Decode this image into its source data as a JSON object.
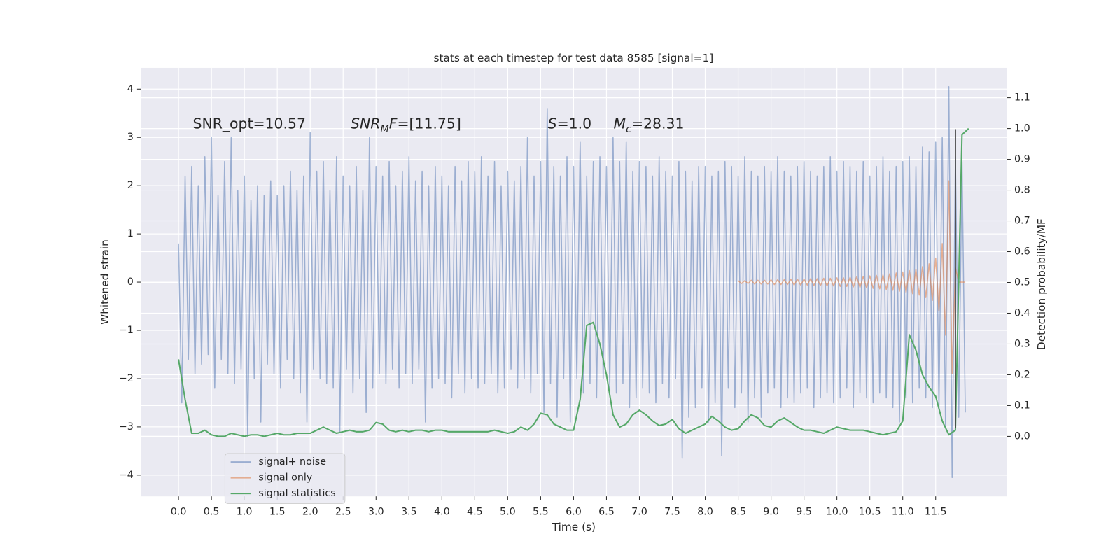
{
  "chart_data": {
    "type": "line",
    "title": "stats at each timestep for test data 8585 [signal=1]",
    "xlabel": "Time (s)",
    "ylabel": "Whitened strain",
    "y2label": "Detection probability/MF",
    "background": "#eaeaf2",
    "grid": true,
    "legend": "lower left",
    "xlim": [
      -0.575,
      12.585
    ],
    "ylim": [
      -4.44,
      4.44
    ],
    "y2lim": [
      -0.195,
      1.197
    ],
    "xticks": [
      {
        "value": 0,
        "label": "0.0"
      },
      0.5,
      {
        "value": 1,
        "label": "1.0"
      },
      1.5,
      {
        "value": 2,
        "label": "2.0"
      },
      2.5,
      {
        "value": 3,
        "label": "3.0"
      },
      3.5,
      {
        "value": 4,
        "label": "4.0"
      },
      4.5,
      {
        "value": 5,
        "label": "5.0"
      },
      5.5,
      {
        "value": 6,
        "label": "6.0"
      },
      6.5,
      {
        "value": 7,
        "label": "7.0"
      },
      7.5,
      {
        "value": 8,
        "label": "8.0"
      },
      8.5,
      {
        "value": 9,
        "label": "9.0"
      },
      9.5,
      {
        "value": 10,
        "label": "10.0"
      },
      10.5,
      {
        "value": 11,
        "label": "11.0"
      },
      11.5
    ],
    "yticks": [
      {
        "value": -4,
        "label": "−4"
      },
      {
        "value": -3,
        "label": "−3"
      },
      {
        "value": -2,
        "label": "−2"
      },
      {
        "value": -1,
        "label": "−1"
      },
      0,
      1,
      2,
      3,
      4
    ],
    "y2ticks": [
      {
        "value": 0,
        "label": "0.0"
      },
      0.1,
      0.2,
      0.3,
      0.4,
      0.5,
      0.6,
      0.7,
      0.8,
      0.9,
      {
        "value": 1,
        "label": "1.0"
      },
      1.1
    ],
    "annotations": [
      [
        {
          "text": "SNR_opt=10.57"
        }
      ],
      [
        {
          "text": "SNR",
          "style": "italic"
        },
        {
          "text": "M",
          "style": "sub"
        },
        {
          "text": "F",
          "style": "italic"
        },
        {
          "text": "=[11.75]"
        }
      ],
      [
        {
          "text": "S",
          "style": "italic"
        },
        {
          "text": "=1.0"
        }
      ],
      [
        {
          "text": "M",
          "style": "italic"
        },
        {
          "text": "c",
          "style": "sub"
        },
        {
          "text": "=28.31"
        }
      ]
    ],
    "vline": {
      "x": 11.8,
      "y": [
        -3.02,
        3.17
      ],
      "color": "#444444"
    },
    "series": [
      {
        "name": "signal+ noise",
        "color": "#4c72b0",
        "alpha": 0.5,
        "x": [
          0,
          0.05,
          0.1,
          0.15,
          0.2,
          0.25,
          0.3,
          0.35,
          0.4,
          0.45,
          0.5,
          0.55,
          0.6,
          0.65,
          0.7,
          0.75,
          0.8,
          0.85,
          0.9,
          0.95,
          1,
          1.05,
          1.1,
          1.15,
          1.2,
          1.25,
          1.3,
          1.35,
          1.4,
          1.45,
          1.5,
          1.55,
          1.6,
          1.65,
          1.7,
          1.75,
          1.8,
          1.85,
          1.9,
          1.95,
          2,
          2.05,
          2.1,
          2.15,
          2.2,
          2.25,
          2.3,
          2.35,
          2.4,
          2.45,
          2.5,
          2.55,
          2.6,
          2.65,
          2.7,
          2.75,
          2.8,
          2.85,
          2.9,
          2.95,
          3,
          3.05,
          3.1,
          3.15,
          3.2,
          3.25,
          3.3,
          3.35,
          3.4,
          3.45,
          3.5,
          3.55,
          3.6,
          3.65,
          3.7,
          3.75,
          3.8,
          3.85,
          3.9,
          3.95,
          4,
          4.05,
          4.1,
          4.15,
          4.2,
          4.25,
          4.3,
          4.35,
          4.4,
          4.45,
          4.5,
          4.55,
          4.6,
          4.65,
          4.7,
          4.75,
          4.8,
          4.85,
          4.9,
          4.95,
          5,
          5.05,
          5.1,
          5.15,
          5.2,
          5.25,
          5.3,
          5.35,
          5.4,
          5.45,
          5.5,
          5.55,
          5.6,
          5.65,
          5.7,
          5.75,
          5.8,
          5.85,
          5.9,
          5.95,
          6,
          6.05,
          6.1,
          6.15,
          6.2,
          6.25,
          6.3,
          6.35,
          6.4,
          6.45,
          6.5,
          6.55,
          6.6,
          6.65,
          6.7,
          6.75,
          6.8,
          6.85,
          6.9,
          6.95,
          7,
          7.05,
          7.1,
          7.15,
          7.2,
          7.25,
          7.3,
          7.35,
          7.4,
          7.45,
          7.5,
          7.55,
          7.6,
          7.65,
          7.7,
          7.75,
          7.8,
          7.85,
          7.9,
          7.95,
          8,
          8.05,
          8.1,
          8.15,
          8.2,
          8.25,
          8.3,
          8.35,
          8.4,
          8.45,
          8.5,
          8.55,
          8.6,
          8.65,
          8.7,
          8.75,
          8.8,
          8.85,
          8.9,
          8.95,
          9,
          9.05,
          9.1,
          9.15,
          9.2,
          9.25,
          9.3,
          9.35,
          9.4,
          9.45,
          9.5,
          9.55,
          9.6,
          9.65,
          9.7,
          9.75,
          9.8,
          9.85,
          9.9,
          9.95,
          10,
          10.05,
          10.1,
          10.15,
          10.2,
          10.25,
          10.3,
          10.35,
          10.4,
          10.45,
          10.5,
          10.55,
          10.6,
          10.65,
          10.7,
          10.75,
          10.8,
          10.85,
          10.9,
          10.95,
          11,
          11.05,
          11.1,
          11.15,
          11.2,
          11.25,
          11.3,
          11.35,
          11.4,
          11.45,
          11.5,
          11.55,
          11.6,
          11.65,
          11.7,
          11.75,
          11.8,
          11.85,
          11.9,
          11.95
        ],
        "values": [
          0.8,
          -2.5,
          2.2,
          -1.6,
          2.4,
          -1.9,
          2.0,
          -1.7,
          2.6,
          -1.5,
          3.0,
          -2.2,
          1.8,
          -1.6,
          2.5,
          -1.9,
          3.0,
          -2.1,
          1.9,
          -1.8,
          2.2,
          -3.2,
          1.7,
          -2.0,
          2.0,
          -2.9,
          1.8,
          -1.7,
          2.1,
          -1.9,
          1.8,
          -2.2,
          2.0,
          -1.6,
          2.3,
          -2.0,
          1.9,
          -2.3,
          2.2,
          -2.9,
          3.1,
          -1.8,
          2.3,
          -2.0,
          2.5,
          -2.1,
          1.9,
          -2.2,
          2.6,
          -3.1,
          2.2,
          -1.8,
          2.0,
          -2.3,
          2.4,
          -2.0,
          1.9,
          -2.7,
          3.0,
          -2.2,
          2.4,
          -1.9,
          2.2,
          -2.1,
          2.5,
          -1.8,
          2.0,
          -2.2,
          2.3,
          -1.9,
          2.6,
          -2.1,
          2.1,
          -1.8,
          2.3,
          -2.9,
          2.0,
          -2.2,
          2.4,
          -2.0,
          2.2,
          -2.1,
          2.0,
          -2.4,
          2.4,
          -1.9,
          2.1,
          -2.3,
          2.5,
          -2.0,
          2.3,
          -2.2,
          2.6,
          -2.1,
          2.2,
          -1.9,
          2.5,
          -2.3,
          2.0,
          -2.2,
          2.3,
          -1.8,
          2.1,
          -2.2,
          2.4,
          -2.0,
          3.0,
          -2.3,
          2.2,
          -1.9,
          2.5,
          -2.7,
          3.6,
          -2.1,
          2.4,
          -2.8,
          2.2,
          -2.0,
          2.6,
          -2.9,
          2.4,
          -2.0,
          2.9,
          -2.3,
          2.2,
          -2.1,
          2.5,
          -2.4,
          2.6,
          -2.0,
          2.4,
          -2.2,
          3.0,
          -2.3,
          2.5,
          -2.1,
          2.9,
          -2.6,
          2.3,
          -2.4,
          2.5,
          -2.2,
          2.4,
          -2.3,
          2.2,
          -2.5,
          2.6,
          -2.1,
          2.3,
          -2.4,
          2.2,
          -2.0,
          2.5,
          -3.65,
          2.3,
          -2.8,
          2.1,
          -2.6,
          2.4,
          -2.2,
          2.4,
          -2.9,
          2.2,
          -2.5,
          2.3,
          -3.6,
          2.5,
          -2.2,
          2.4,
          -2.6,
          2.2,
          -2.3,
          2.6,
          -2.9,
          2.3,
          -2.4,
          2.2,
          -2.8,
          2.4,
          -2.3,
          2.3,
          -2.2,
          2.6,
          -2.6,
          2.3,
          -2.4,
          2.2,
          -2.5,
          2.4,
          -2.3,
          2.5,
          -2.2,
          2.3,
          -2.6,
          2.2,
          -2.4,
          2.4,
          -2.3,
          2.6,
          -2.5,
          2.3,
          -2.4,
          2.5,
          -2.2,
          2.4,
          -2.6,
          2.3,
          -2.3,
          2.5,
          -2.4,
          2.2,
          -2.5,
          2.4,
          -2.3,
          2.6,
          -2.4,
          2.3,
          -2.6,
          2.4,
          -2.9,
          2.5,
          -2.4,
          2.6,
          -2.5,
          2.4,
          -2.2,
          2.8,
          -2.4,
          2.7,
          -2.6,
          2.9,
          -2.6,
          3.0,
          -3.0,
          4.05,
          -4.05,
          2.6,
          -2.8,
          2.5,
          -2.7
        ]
      },
      {
        "name": "signal only",
        "color": "#dd8452",
        "alpha": 0.6,
        "x": [
          8.5,
          8.55,
          8.6,
          8.65,
          8.7,
          8.75,
          8.8,
          8.85,
          8.9,
          8.95,
          9,
          9.05,
          9.1,
          9.15,
          9.2,
          9.25,
          9.3,
          9.35,
          9.4,
          9.45,
          9.5,
          9.55,
          9.6,
          9.65,
          9.7,
          9.75,
          9.8,
          9.85,
          9.9,
          9.95,
          10,
          10.05,
          10.1,
          10.15,
          10.2,
          10.25,
          10.3,
          10.35,
          10.4,
          10.45,
          10.5,
          10.55,
          10.6,
          10.65,
          10.7,
          10.75,
          10.8,
          10.85,
          10.9,
          10.95,
          11,
          11.05,
          11.1,
          11.15,
          11.2,
          11.25,
          11.3,
          11.35,
          11.4,
          11.45,
          11.5,
          11.55,
          11.6,
          11.65,
          11.7,
          11.75,
          11.8,
          11.85,
          11.9,
          11.95
        ],
        "values": [
          0.03,
          -0.03,
          0.03,
          -0.03,
          0.04,
          -0.04,
          0.04,
          -0.04,
          0.04,
          -0.04,
          0.05,
          -0.05,
          0.05,
          -0.05,
          0.05,
          -0.05,
          0.06,
          -0.06,
          0.06,
          -0.06,
          0.06,
          -0.06,
          0.07,
          -0.07,
          0.07,
          -0.07,
          0.08,
          -0.08,
          0.08,
          -0.08,
          0.09,
          -0.09,
          0.09,
          -0.09,
          0.1,
          -0.1,
          0.11,
          -0.11,
          0.12,
          -0.12,
          0.13,
          -0.13,
          0.14,
          -0.14,
          0.15,
          -0.15,
          0.17,
          -0.17,
          0.19,
          -0.19,
          0.21,
          -0.21,
          0.24,
          -0.24,
          0.27,
          -0.27,
          0.32,
          -0.32,
          0.38,
          -0.38,
          0.5,
          -0.6,
          0.8,
          -1.1,
          2.1,
          -1.9,
          0.3,
          0.0,
          0.0,
          0.0
        ]
      },
      {
        "name": "signal statistics",
        "color": "#55a868",
        "alpha": 1,
        "axis": "y2",
        "x": [
          0,
          0.1,
          0.2,
          0.3,
          0.4,
          0.5,
          0.6,
          0.7,
          0.8,
          0.9,
          1,
          1.1,
          1.2,
          1.3,
          1.4,
          1.5,
          1.6,
          1.7,
          1.8,
          1.9,
          2,
          2.1,
          2.2,
          2.3,
          2.4,
          2.5,
          2.6,
          2.7,
          2.8,
          2.9,
          3,
          3.1,
          3.2,
          3.3,
          3.4,
          3.5,
          3.6,
          3.7,
          3.8,
          3.9,
          4,
          4.1,
          4.2,
          4.3,
          4.4,
          4.5,
          4.6,
          4.7,
          4.8,
          4.9,
          5,
          5.1,
          5.2,
          5.3,
          5.4,
          5.5,
          5.6,
          5.7,
          5.8,
          5.9,
          6,
          6.1,
          6.2,
          6.3,
          6.4,
          6.5,
          6.6,
          6.7,
          6.8,
          6.9,
          7,
          7.1,
          7.2,
          7.3,
          7.4,
          7.5,
          7.6,
          7.7,
          7.8,
          7.9,
          8,
          8.1,
          8.2,
          8.3,
          8.4,
          8.5,
          8.6,
          8.7,
          8.8,
          8.9,
          9,
          9.1,
          9.2,
          9.3,
          9.4,
          9.5,
          9.6,
          9.7,
          9.8,
          9.9,
          10,
          10.1,
          10.2,
          10.3,
          10.4,
          10.5,
          10.6,
          10.7,
          10.8,
          10.9,
          11,
          11.1,
          11.2,
          11.3,
          11.4,
          11.5,
          11.6,
          11.7,
          11.8,
          11.9,
          12
        ],
        "values": [
          0.25,
          0.12,
          0.01,
          0.01,
          0.02,
          0.005,
          0,
          0,
          0.01,
          0.005,
          0,
          0.005,
          0.005,
          0,
          0.005,
          0.01,
          0.005,
          0.005,
          0.01,
          0.01,
          0.01,
          0.02,
          0.03,
          0.02,
          0.01,
          0.015,
          0.02,
          0.015,
          0.015,
          0.02,
          0.045,
          0.04,
          0.02,
          0.015,
          0.02,
          0.015,
          0.02,
          0.02,
          0.015,
          0.02,
          0.02,
          0.015,
          0.015,
          0.015,
          0.015,
          0.015,
          0.015,
          0.015,
          0.02,
          0.015,
          0.01,
          0.015,
          0.03,
          0.02,
          0.04,
          0.075,
          0.07,
          0.04,
          0.03,
          0.02,
          0.02,
          0.12,
          0.36,
          0.37,
          0.3,
          0.2,
          0.07,
          0.03,
          0.04,
          0.07,
          0.085,
          0.07,
          0.05,
          0.035,
          0.04,
          0.055,
          0.025,
          0.01,
          0.02,
          0.03,
          0.04,
          0.065,
          0.05,
          0.03,
          0.02,
          0.025,
          0.05,
          0.07,
          0.06,
          0.035,
          0.03,
          0.05,
          0.06,
          0.045,
          0.03,
          0.02,
          0.02,
          0.015,
          0.01,
          0.02,
          0.03,
          0.025,
          0.02,
          0.02,
          0.02,
          0.015,
          0.01,
          0.005,
          0.01,
          0.015,
          0.05,
          0.33,
          0.28,
          0.2,
          0.16,
          0.13,
          0.05,
          0.005,
          0.02,
          0.98,
          1.0
        ]
      }
    ]
  }
}
